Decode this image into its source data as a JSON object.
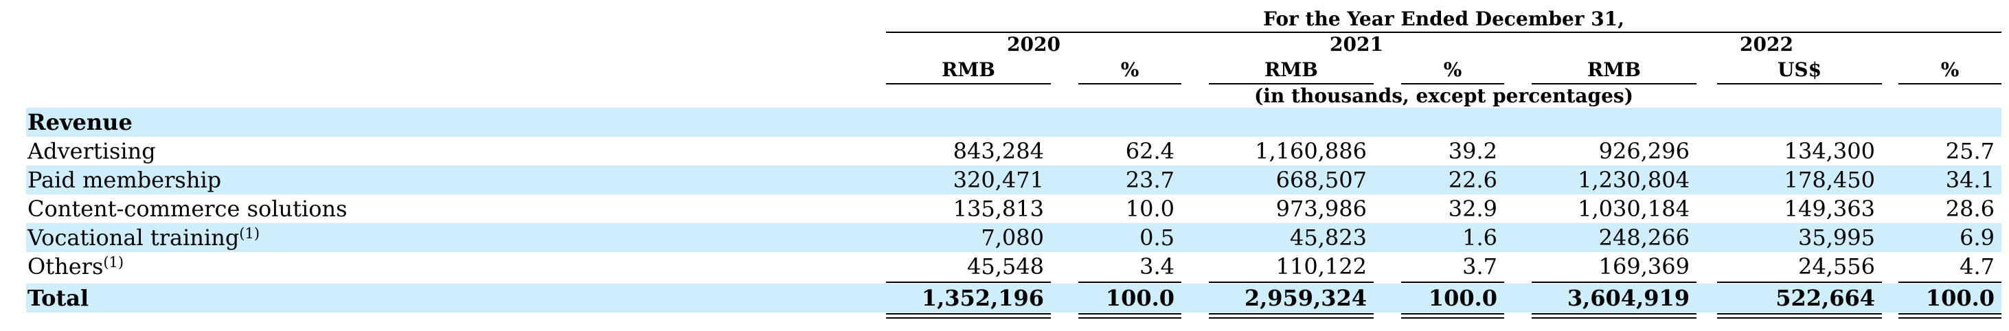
{
  "table": {
    "period_header": "For the Year Ended December 31,",
    "years": [
      "2020",
      "2021",
      "2022"
    ],
    "column_units": [
      "RMB",
      "%",
      "RMB",
      "%",
      "RMB",
      "US$",
      "%"
    ],
    "units_note": "(in thousands, except percentages)",
    "section_label": "Revenue",
    "rows": [
      {
        "label": "Advertising",
        "sup": "",
        "values": [
          "843,284",
          "62.4",
          "1,160,886",
          "39.2",
          "926,296",
          "134,300",
          "25.7"
        ]
      },
      {
        "label": "Paid membership",
        "sup": "",
        "values": [
          "320,471",
          "23.7",
          "668,507",
          "22.6",
          "1,230,804",
          "178,450",
          "34.1"
        ]
      },
      {
        "label": "Content-commerce solutions",
        "sup": "",
        "values": [
          "135,813",
          "10.0",
          "973,986",
          "32.9",
          "1,030,184",
          "149,363",
          "28.6"
        ]
      },
      {
        "label": "Vocational training",
        "sup": "(1)",
        "values": [
          "7,080",
          "0.5",
          "45,823",
          "1.6",
          "248,266",
          "35,995",
          "6.9"
        ]
      },
      {
        "label": "Others",
        "sup": "(1)",
        "values": [
          "45,548",
          "3.4",
          "110,122",
          "3.7",
          "169,369",
          "24,556",
          "4.7"
        ]
      }
    ],
    "total": {
      "label": "Total",
      "values": [
        "1,352,196",
        "100.0",
        "2,959,324",
        "100.0",
        "3,604,919",
        "522,664",
        "100.0"
      ]
    }
  }
}
